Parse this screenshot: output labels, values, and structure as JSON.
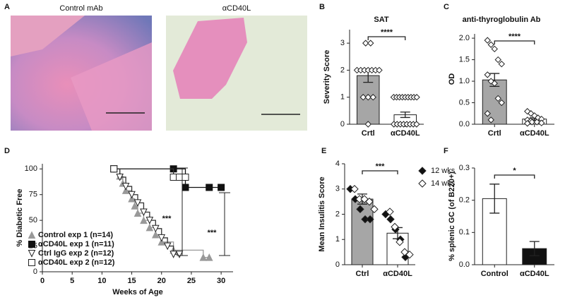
{
  "chart_data": [
    {
      "type": "image",
      "panel": "A",
      "images": [
        "Control mAb",
        "αCD40L"
      ]
    },
    {
      "type": "bar",
      "panel": "B",
      "title": "SAT",
      "ylabel": "Severity Score",
      "categories": [
        "Crtl",
        "αCD40L"
      ],
      "values": [
        1.8,
        0.35
      ],
      "errors": [
        0.25,
        0.1
      ],
      "colors": [
        "#a6a6a6",
        "#ffffff"
      ],
      "ylim": [
        0,
        3.5
      ],
      "yticks": [
        0,
        1,
        2,
        3
      ],
      "significance": "****",
      "points": [
        [
          3,
          3,
          2,
          2,
          2,
          2,
          2,
          2,
          2,
          1,
          1,
          1,
          0
        ],
        [
          1,
          1,
          1,
          1,
          1,
          1,
          1,
          1,
          1,
          0,
          0,
          0,
          0,
          0,
          0,
          0,
          0
        ]
      ]
    },
    {
      "type": "bar",
      "panel": "C",
      "title": "anti-thyroglobulin Ab",
      "ylabel": "OD",
      "categories": [
        "Crtl",
        "αCD40L"
      ],
      "values": [
        1.03,
        0.12
      ],
      "errors": [
        0.15,
        0.03
      ],
      "colors": [
        "#a6a6a6",
        "#ffffff"
      ],
      "ylim": [
        0,
        2.1
      ],
      "yticks": [
        {
          "value": 0,
          "label": "0.0"
        },
        {
          "value": 0.5,
          "label": "0.5"
        },
        {
          "value": 1,
          "label": "1.0"
        },
        {
          "value": 1.5,
          "label": "1.5"
        },
        {
          "value": 2,
          "label": "2.0"
        }
      ],
      "significance": "****",
      "points": [
        [
          1.95,
          1.85,
          1.75,
          1.5,
          1.4,
          1.15,
          1.0,
          0.95,
          0.6,
          0.5,
          0.25,
          0.1
        ],
        [
          0.3,
          0.25,
          0.2,
          0.15,
          0.12,
          0.1,
          0.08,
          0.05,
          0.05,
          0.03,
          0.02
        ]
      ]
    },
    {
      "type": "line",
      "panel": "D",
      "xlabel": "Weeks of Age",
      "ylabel": "% Diabetic Free",
      "step": true,
      "xlim": [
        0,
        32
      ],
      "xticks": [
        0,
        5,
        10,
        15,
        20,
        25,
        30
      ],
      "ylim": [
        0,
        105
      ],
      "yticks": [
        0,
        25,
        50,
        75,
        100
      ],
      "legend": "lower left",
      "annotations": [
        "***",
        "***"
      ],
      "series": [
        {
          "name": "Control exp 1 (n=14)",
          "color": "#999999",
          "marker": "triangle-up",
          "filled": true,
          "x": [
            12,
            13,
            13.5,
            14,
            15,
            15.5,
            16,
            17,
            18,
            19,
            20,
            22,
            27,
            28
          ],
          "values": [
            100,
            93,
            86,
            79,
            71,
            64,
            57,
            50,
            43,
            36,
            29,
            21,
            14,
            14
          ]
        },
        {
          "name": "αCD40L exp 1 (n=11)",
          "color": "#111111",
          "marker": "square",
          "filled": true,
          "x": [
            12,
            22,
            24,
            28,
            30
          ],
          "values": [
            100,
            100,
            82,
            82,
            82
          ]
        },
        {
          "name": "Ctrl IgG exp 2 (n=12)",
          "color": "#333333",
          "marker": "triangle-down",
          "filled": false,
          "x": [
            12,
            13,
            14,
            15,
            16,
            17,
            18,
            19,
            20,
            21,
            22,
            23
          ],
          "values": [
            100,
            92,
            83,
            75,
            67,
            58,
            50,
            42,
            33,
            25,
            17,
            17
          ]
        },
        {
          "name": "αCD40L exp 2 (n=12)",
          "color": "#333333",
          "marker": "square",
          "filled": false,
          "x": [
            12,
            22,
            23,
            24
          ],
          "values": [
            100,
            92,
            92,
            92
          ]
        }
      ]
    },
    {
      "type": "bar",
      "panel": "E",
      "ylabel": "Mean Insulitis Score",
      "categories": [
        "Ctrl",
        "αCD40L"
      ],
      "values": [
        2.6,
        1.25
      ],
      "errors": [
        0.2,
        0.22
      ],
      "colors": [
        "#a6a6a6",
        "#ffffff"
      ],
      "ylim": [
        0,
        4
      ],
      "yticks": [
        0,
        1,
        2,
        3,
        4
      ],
      "significance": "***",
      "point_series": [
        {
          "name": "12 wks",
          "filled": true,
          "values": [
            [
              3.0,
              2.6,
              2.2,
              1.8,
              1.8
            ],
            [
              2.0,
              1.8,
              1.4,
              1.0,
              0.3
            ]
          ]
        },
        {
          "name": "14 wks",
          "filled": false,
          "values": [
            [
              3.0,
              2.6,
              2.6,
              2.5,
              2.2
            ],
            [
              2.1,
              1.5,
              0.9,
              0.5,
              0.4
            ]
          ]
        }
      ]
    },
    {
      "type": "bar",
      "panel": "F",
      "ylabel": "% splenic GC (of B220+)",
      "categories": [
        "Control",
        "αCD40L"
      ],
      "values": [
        0.205,
        0.05
      ],
      "errors": [
        0.045,
        0.022
      ],
      "colors": [
        "#ffffff",
        "#111111"
      ],
      "ylim": [
        0,
        0.3
      ],
      "yticks": [
        {
          "value": 0,
          "label": "0.0"
        },
        {
          "value": 0.1,
          "label": "0.1"
        },
        {
          "value": 0.2,
          "label": "0.2"
        },
        {
          "value": 0.3,
          "label": "0.3"
        }
      ],
      "significance": "*"
    }
  ]
}
